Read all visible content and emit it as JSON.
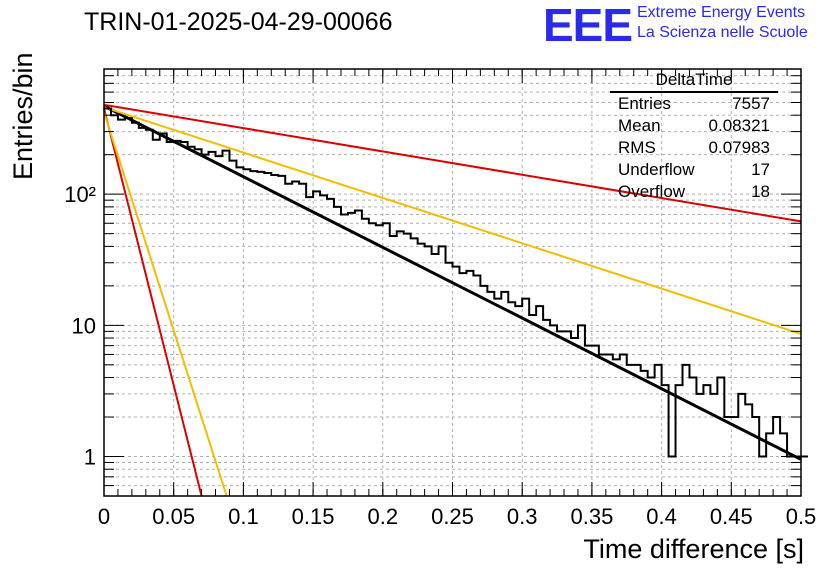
{
  "header": {
    "title": "TRIN-01-2025-04-29-00066",
    "logo_text": "EEE",
    "logo_line1": "Extreme Energy Events",
    "logo_line2": "La Scienza nelle Scuole"
  },
  "stats_box": {
    "title": "DeltaTime",
    "rows": [
      {
        "label": "Entries",
        "value": "7557"
      },
      {
        "label": "Mean",
        "value": "0.08321"
      },
      {
        "label": "RMS",
        "value": "0.07983"
      },
      {
        "label": "Underflow",
        "value": "17"
      },
      {
        "label": "Overflow",
        "value": "18"
      }
    ]
  },
  "colors": {
    "histogram": "#000000",
    "fit": "#000000",
    "red": "#dd0000",
    "orange": "#f5bd00",
    "grid": "#b0b0b0",
    "logo": "#2a2aee"
  },
  "chart_data": {
    "type": "line",
    "title": "TRIN-01-2025-04-29-00066",
    "xlabel": "Time difference [s]",
    "ylabel": "Entries/bin",
    "xlim": [
      0,
      0.5
    ],
    "ylim": [
      0.5,
      900
    ],
    "yscale": "log",
    "grid": true,
    "x_ticks": [
      "0",
      "0.05",
      "0.1",
      "0.15",
      "0.2",
      "0.25",
      "0.3",
      "0.35",
      "0.4",
      "0.45",
      "0.5"
    ],
    "y_ticks": [
      {
        "value": 1,
        "label": "1"
      },
      {
        "value": 10,
        "label": "10"
      },
      {
        "value": 100,
        "label": "10²"
      }
    ],
    "histogram": {
      "name": "DeltaTime",
      "bin_width": 0.005,
      "counts": [
        450,
        400,
        370,
        380,
        350,
        320,
        310,
        260,
        290,
        250,
        255,
        250,
        230,
        220,
        200,
        210,
        195,
        215,
        180,
        160,
        155,
        150,
        148,
        145,
        140,
        138,
        120,
        125,
        120,
        95,
        105,
        98,
        92,
        80,
        70,
        72,
        75,
        65,
        60,
        58,
        60,
        48,
        52,
        50,
        46,
        42,
        40,
        35,
        40,
        30,
        28,
        25,
        26,
        24,
        20,
        18,
        16,
        18,
        15,
        14,
        16,
        12,
        14,
        11,
        10,
        9,
        9,
        8,
        10,
        7,
        7,
        6,
        6,
        5.5,
        6,
        5,
        5,
        4.5,
        4,
        5,
        3.5,
        1,
        3.5,
        5,
        4,
        3,
        3.5,
        3,
        4,
        2,
        2,
        3,
        2.5,
        2,
        1,
        1.5,
        2,
        1.5,
        1,
        1,
        1
      ]
    },
    "series": [
      {
        "kind": "fit",
        "color": "black",
        "points": [
          [
            0,
            470
          ],
          [
            0.5,
            0.95
          ]
        ]
      },
      {
        "kind": "curve",
        "color": "red",
        "points": [
          [
            0,
            480
          ],
          [
            0.5,
            62
          ]
        ]
      },
      {
        "kind": "curve",
        "color": "orange",
        "points": [
          [
            0,
            460
          ],
          [
            0.5,
            8.6
          ]
        ]
      },
      {
        "kind": "curve",
        "color": "red",
        "points": [
          [
            0,
            450
          ],
          [
            0.07,
            0.5
          ]
        ]
      },
      {
        "kind": "curve",
        "color": "orange",
        "points": [
          [
            0,
            420
          ],
          [
            0.088,
            0.5
          ]
        ]
      }
    ]
  }
}
